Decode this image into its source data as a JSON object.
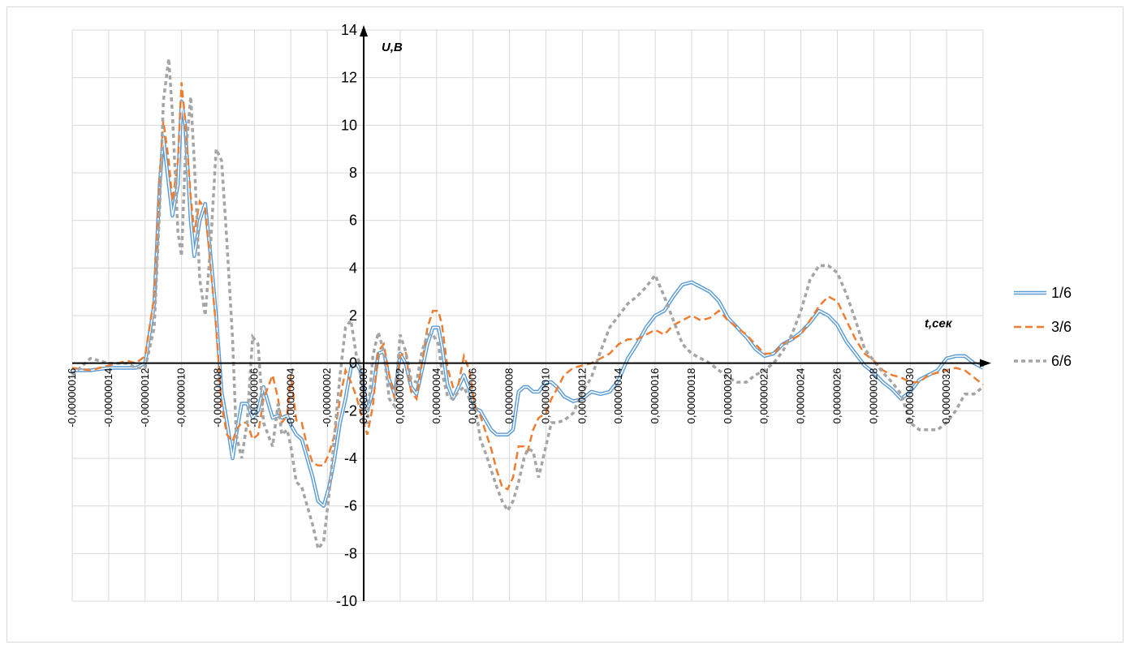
{
  "chart_data": {
    "type": "line",
    "xlabel": "t,сек",
    "ylabel": "U,B",
    "xlim": [
      -1.6e-07,
      3.4e-07
    ],
    "ylim": [
      -10,
      14
    ],
    "grid": true,
    "legend_position": "right",
    "y_ticks": [
      "14",
      "12",
      "10",
      "8",
      "6",
      "4",
      "2",
      "0",
      "-2",
      "-4",
      "-6",
      "-8",
      "-10"
    ],
    "x_ticks": [
      "-0,00000016",
      "-0,00000014",
      "-0,00000012",
      "-0,00000010",
      "-0,00000008",
      "-0,00000006",
      "-0,00000004",
      "-0,00000002",
      "0,00000000",
      "0,00000002",
      "0,00000004",
      "0,00000006",
      "0,00000008",
      "0,00000010",
      "0,00000012",
      "0,00000014",
      "0,00000016",
      "0,00000018",
      "0,00000020",
      "0,00000022",
      "0,00000024",
      "0,00000026",
      "0,00000028",
      "0,00000030",
      "0,00000032"
    ],
    "series": [
      {
        "name": "1/6",
        "color": "#5b9bd5",
        "style": "double",
        "x": [
          -1.6e-07,
          -1.5e-07,
          -1.4e-07,
          -1.3e-07,
          -1.25e-07,
          -1.2e-07,
          -1.15e-07,
          -1.12e-07,
          -1.1e-07,
          -1.07e-07,
          -1.05e-07,
          -1.02e-07,
          -1e-07,
          -9.8e-08,
          -9.5e-08,
          -9.3e-08,
          -9e-08,
          -8.7e-08,
          -8.4e-08,
          -8.1e-08,
          -7.8e-08,
          -7.5e-08,
          -7.2e-08,
          -7e-08,
          -6.7e-08,
          -6.4e-08,
          -6.1e-08,
          -5.8e-08,
          -5.5e-08,
          -5e-08,
          -4.7e-08,
          -4.5e-08,
          -4.2e-08,
          -4e-08,
          -3.7e-08,
          -3.4e-08,
          -3.1e-08,
          -2.8e-08,
          -2.5e-08,
          -2.2e-08,
          -1.9e-08,
          -1.6e-08,
          -1.3e-08,
          -1e-08,
          -7e-09,
          -4e-09,
          -2e-09,
          0,
          2e-09,
          5e-09,
          8e-09,
          1.1e-08,
          1.4e-08,
          1.7e-08,
          2e-08,
          2.3e-08,
          2.6e-08,
          2.9e-08,
          3.2e-08,
          3.5e-08,
          3.8e-08,
          4.1e-08,
          4.3e-08,
          4.6e-08,
          4.9e-08,
          5.2e-08,
          5.5e-08,
          5.8e-08,
          6.1e-08,
          6.4e-08,
          6.7e-08,
          7e-08,
          7.3e-08,
          7.6e-08,
          7.9e-08,
          8.2e-08,
          8.5e-08,
          8.8e-08,
          9e-08,
          9.3e-08,
          9.6e-08,
          1e-07,
          1.03e-07,
          1.06e-07,
          1.1e-07,
          1.15e-07,
          1.2e-07,
          1.25e-07,
          1.3e-07,
          1.35e-07,
          1.4e-07,
          1.45e-07,
          1.5e-07,
          1.55e-07,
          1.6e-07,
          1.65e-07,
          1.7e-07,
          1.75e-07,
          1.8e-07,
          1.85e-07,
          1.9e-07,
          1.95e-07,
          2e-07,
          2.05e-07,
          2.1e-07,
          2.15e-07,
          2.2e-07,
          2.25e-07,
          2.3e-07,
          2.35e-07,
          2.4e-07,
          2.45e-07,
          2.5e-07,
          2.55e-07,
          2.6e-07,
          2.65e-07,
          2.7e-07,
          2.75e-07,
          2.8e-07,
          2.85e-07,
          2.9e-07,
          2.95e-07,
          3e-07,
          3.05e-07,
          3.1e-07,
          3.15e-07,
          3.2e-07,
          3.25e-07,
          3.3e-07,
          3.35e-07,
          3.4e-07
        ],
        "y": [
          -0.3,
          -0.3,
          -0.2,
          -0.2,
          -0.2,
          0,
          2.5,
          7.5,
          9.5,
          7.5,
          6.2,
          7.5,
          11,
          10,
          6,
          4.5,
          6,
          6.7,
          4.5,
          2,
          -1.2,
          -2.5,
          -4,
          -3,
          -1.7,
          -1.7,
          -2.3,
          -2,
          -1,
          -2.3,
          -2.2,
          -2.3,
          -2.2,
          -2.6,
          -3,
          -3.2,
          -4,
          -4.8,
          -5.8,
          -6,
          -5.2,
          -4,
          -2.5,
          -1.5,
          -0.2,
          0,
          -0.3,
          -1,
          -2,
          -1.2,
          0.4,
          0.5,
          -0.7,
          -1.3,
          0.4,
          0,
          -1,
          -1.3,
          -0.3,
          0.8,
          1.5,
          1.5,
          0.7,
          -0.9,
          -1.5,
          -1,
          -0.5,
          -1.1,
          -1.9,
          -2,
          -2.4,
          -2.8,
          -3,
          -3,
          -3,
          -2.8,
          -1.2,
          -1,
          -1,
          -1.2,
          -1.2,
          -0.8,
          -0.8,
          -1,
          -1.4,
          -1.6,
          -1.5,
          -1.2,
          -1.3,
          -1.2,
          -0.7,
          0.2,
          0.8,
          1.5,
          2.0,
          2.2,
          2.8,
          3.3,
          3.4,
          3.2,
          3.0,
          2.6,
          1.9,
          1.5,
          1.1,
          0.6,
          0.3,
          0.4,
          0.8,
          1.0,
          1.3,
          1.7,
          2.2,
          2.0,
          1.6,
          0.9,
          0.4,
          -0.1,
          -0.4,
          -0.8,
          -1.1,
          -1.5,
          -1.2,
          -0.7,
          -0.5,
          -0.3,
          0.2,
          0.3,
          0.3,
          0,
          -0.2
        ]
      },
      {
        "name": "3/6",
        "color": "#ed7d31",
        "style": "dashed",
        "x": [
          -1.6e-07,
          -1.5e-07,
          -1.4e-07,
          -1.3e-07,
          -1.25e-07,
          -1.2e-07,
          -1.15e-07,
          -1.12e-07,
          -1.1e-07,
          -1.07e-07,
          -1.05e-07,
          -1.02e-07,
          -1e-07,
          -9.8e-08,
          -9.5e-08,
          -9.3e-08,
          -9e-08,
          -8.7e-08,
          -8.4e-08,
          -8.1e-08,
          -7.8e-08,
          -7.5e-08,
          -7.2e-08,
          -7e-08,
          -6.7e-08,
          -6.4e-08,
          -6.1e-08,
          -5.8e-08,
          -5.5e-08,
          -5e-08,
          -4.7e-08,
          -4.5e-08,
          -4.2e-08,
          -4e-08,
          -3.7e-08,
          -3.4e-08,
          -3.1e-08,
          -2.8e-08,
          -2.5e-08,
          -2.2e-08,
          -1.9e-08,
          -1.6e-08,
          -1.3e-08,
          -1e-08,
          -7e-09,
          -4e-09,
          -2e-09,
          0,
          2e-09,
          5e-09,
          8e-09,
          1.1e-08,
          1.4e-08,
          1.7e-08,
          2e-08,
          2.3e-08,
          2.6e-08,
          2.9e-08,
          3.2e-08,
          3.5e-08,
          3.8e-08,
          4.1e-08,
          4.3e-08,
          4.6e-08,
          4.9e-08,
          5.2e-08,
          5.5e-08,
          5.8e-08,
          6.1e-08,
          6.4e-08,
          6.7e-08,
          7e-08,
          7.3e-08,
          7.6e-08,
          7.9e-08,
          8.2e-08,
          8.5e-08,
          8.8e-08,
          9e-08,
          9.3e-08,
          9.6e-08,
          1e-07,
          1.03e-07,
          1.06e-07,
          1.1e-07,
          1.15e-07,
          1.2e-07,
          1.25e-07,
          1.3e-07,
          1.35e-07,
          1.4e-07,
          1.45e-07,
          1.5e-07,
          1.55e-07,
          1.6e-07,
          1.65e-07,
          1.7e-07,
          1.75e-07,
          1.8e-07,
          1.85e-07,
          1.9e-07,
          1.95e-07,
          2e-07,
          2.05e-07,
          2.1e-07,
          2.15e-07,
          2.2e-07,
          2.25e-07,
          2.3e-07,
          2.35e-07,
          2.4e-07,
          2.45e-07,
          2.5e-07,
          2.55e-07,
          2.6e-07,
          2.65e-07,
          2.7e-07,
          2.75e-07,
          2.8e-07,
          2.85e-07,
          2.9e-07,
          2.95e-07,
          3e-07,
          3.05e-07,
          3.1e-07,
          3.15e-07,
          3.2e-07,
          3.25e-07,
          3.3e-07,
          3.35e-07,
          3.4e-07
        ],
        "y": [
          -0.2,
          -0.3,
          -0.1,
          0.1,
          0,
          0.3,
          2.8,
          7.8,
          10.2,
          8.5,
          6.8,
          8.5,
          11.8,
          10.2,
          7,
          5.5,
          6.8,
          6.5,
          4,
          1.5,
          -1.8,
          -3,
          -3.3,
          -2.8,
          -2.5,
          -2.5,
          -3.2,
          -3,
          -1.5,
          -0.5,
          -1.5,
          -2.5,
          -2.2,
          -0.5,
          -2.4,
          -2.5,
          -3.5,
          -4.2,
          -4.3,
          -4.3,
          -3.8,
          -3,
          -1.5,
          -0.3,
          -0.8,
          -1.4,
          -2,
          -2.5,
          -3,
          -1.8,
          0.5,
          0.8,
          -0.5,
          -1.5,
          0.3,
          0.5,
          -1.2,
          -1.5,
          0,
          1.5,
          2.2,
          2.2,
          1.6,
          -0.2,
          -1,
          -0.9,
          0.3,
          -0.3,
          -1.8,
          -2.2,
          -2.9,
          -3.6,
          -4.5,
          -5.2,
          -5.3,
          -4.8,
          -3.5,
          -3.5,
          -3.7,
          -2.8,
          -2.3,
          -2.1,
          -1.5,
          -1.1,
          -0.5,
          -0.2,
          -0.1,
          0,
          0.2,
          0.4,
          0.8,
          1.0,
          1.0,
          1.2,
          1.4,
          1.2,
          1.6,
          1.8,
          2.0,
          1.8,
          1.9,
          2.2,
          1.8,
          1.5,
          1.2,
          0.8,
          0.4,
          0.4,
          0.8,
          1.0,
          1.2,
          1.8,
          2.4,
          2.8,
          2.6,
          1.8,
          1.0,
          0.4,
          0.1,
          -0.3,
          -0.5,
          -0.6,
          -0.8,
          -0.8,
          -0.5,
          -0.4,
          -0.3,
          -0.2,
          -0.3,
          -0.6,
          -0.9
        ]
      },
      {
        "name": "6/6",
        "color": "#a5a5a5",
        "style": "dotted",
        "x": [
          -1.6e-07,
          -1.5e-07,
          -1.4e-07,
          -1.3e-07,
          -1.25e-07,
          -1.2e-07,
          -1.15e-07,
          -1.12e-07,
          -1.1e-07,
          -1.07e-07,
          -1.05e-07,
          -1.02e-07,
          -1e-07,
          -9.8e-08,
          -9.5e-08,
          -9.3e-08,
          -9e-08,
          -8.7e-08,
          -8.4e-08,
          -8.1e-08,
          -7.8e-08,
          -7.5e-08,
          -7.2e-08,
          -7e-08,
          -6.7e-08,
          -6.4e-08,
          -6.1e-08,
          -5.8e-08,
          -5.5e-08,
          -5e-08,
          -4.7e-08,
          -4.5e-08,
          -4.2e-08,
          -4e-08,
          -3.7e-08,
          -3.4e-08,
          -3.1e-08,
          -2.8e-08,
          -2.5e-08,
          -2.2e-08,
          -1.9e-08,
          -1.6e-08,
          -1.3e-08,
          -1e-08,
          -7e-09,
          -4e-09,
          -2e-09,
          0,
          2e-09,
          5e-09,
          8e-09,
          1.1e-08,
          1.4e-08,
          1.7e-08,
          2e-08,
          2.3e-08,
          2.6e-08,
          2.9e-08,
          3.2e-08,
          3.5e-08,
          3.8e-08,
          4.1e-08,
          4.3e-08,
          4.6e-08,
          4.9e-08,
          5.2e-08,
          5.5e-08,
          5.8e-08,
          6.1e-08,
          6.4e-08,
          6.7e-08,
          7e-08,
          7.3e-08,
          7.6e-08,
          7.9e-08,
          8.2e-08,
          8.5e-08,
          8.8e-08,
          9e-08,
          9.3e-08,
          9.6e-08,
          1e-07,
          1.03e-07,
          1.06e-07,
          1.1e-07,
          1.15e-07,
          1.2e-07,
          1.25e-07,
          1.3e-07,
          1.35e-07,
          1.4e-07,
          1.45e-07,
          1.5e-07,
          1.55e-07,
          1.6e-07,
          1.65e-07,
          1.7e-07,
          1.75e-07,
          1.8e-07,
          1.85e-07,
          1.9e-07,
          1.95e-07,
          2e-07,
          2.05e-07,
          2.1e-07,
          2.15e-07,
          2.2e-07,
          2.25e-07,
          2.3e-07,
          2.35e-07,
          2.4e-07,
          2.45e-07,
          2.5e-07,
          2.55e-07,
          2.6e-07,
          2.65e-07,
          2.7e-07,
          2.75e-07,
          2.8e-07,
          2.85e-07,
          2.9e-07,
          2.95e-07,
          3e-07,
          3.05e-07,
          3.1e-07,
          3.15e-07,
          3.2e-07,
          3.25e-07,
          3.3e-07,
          3.35e-07,
          3.4e-07
        ],
        "y": [
          -0.5,
          0.2,
          0,
          0,
          -0.2,
          -0.2,
          1.5,
          6.5,
          11,
          12.8,
          10.5,
          5.5,
          4.5,
          8.5,
          11.2,
          8.5,
          3.5,
          2,
          5,
          9,
          8.5,
          5,
          1,
          -3,
          -4,
          -2.5,
          1.1,
          0.8,
          -2.5,
          -3.5,
          -1.7,
          -3,
          -2.8,
          -3.5,
          -5,
          -5.2,
          -6,
          -6.8,
          -7.8,
          -7.5,
          -5.5,
          -3,
          -0.5,
          1.5,
          1.8,
          0.3,
          0,
          -2.5,
          -2.5,
          0.3,
          1.3,
          0.5,
          -1.5,
          -1.8,
          1.2,
          0.5,
          -0.7,
          -0.8,
          0.5,
          1.2,
          1.2,
          0.8,
          -0.4,
          -1.4,
          -1.5,
          -1.2,
          -1.0,
          -1.5,
          -1.7,
          -3.2,
          -3.8,
          -4.5,
          -5.2,
          -5.8,
          -6.2,
          -5.8,
          -5,
          -4,
          -3.6,
          -3.7,
          -4.8,
          -3.5,
          -2.5,
          -2.5,
          -2.4,
          -2.1,
          -1.2,
          -0.6,
          0.5,
          1.5,
          2.0,
          2.5,
          2.8,
          3.2,
          3.7,
          2.8,
          1.8,
          0.8,
          0.4,
          0.2,
          0,
          -0.3,
          -0.6,
          -0.8,
          -0.8,
          -0.5,
          -0.3,
          0,
          0.5,
          1.2,
          2.2,
          3.5,
          4.1,
          4.1,
          3.8,
          2.9,
          1.8,
          0.6,
          0.1,
          -0.4,
          -0.8,
          -1.3,
          -2.5,
          -2.8,
          -2.8,
          -2.8,
          -2.5,
          -2.0,
          -1.3,
          -1.3,
          -1.0
        ]
      }
    ]
  }
}
